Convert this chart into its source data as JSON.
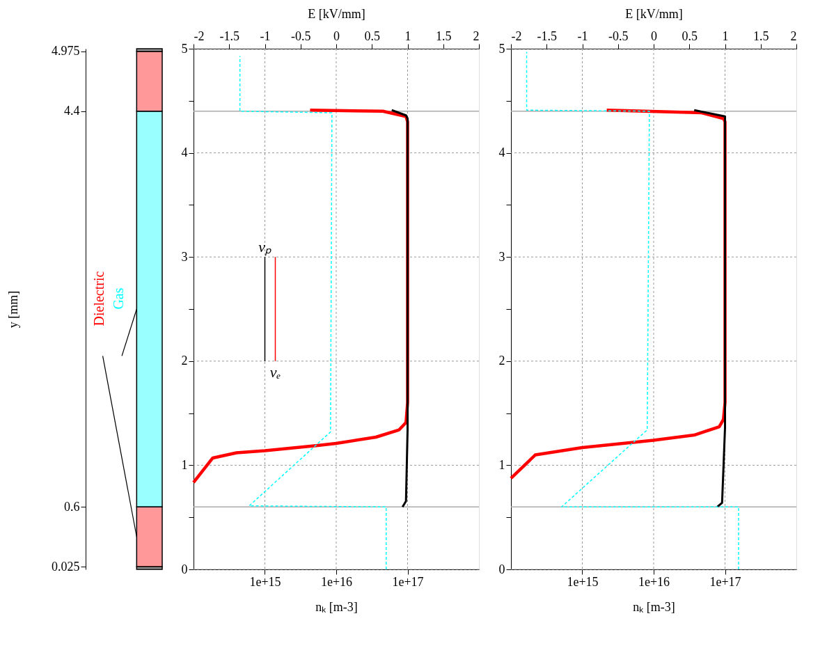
{
  "chart_data": [
    {
      "type": "bar",
      "stacked": true,
      "ylabel": "y [mm]",
      "ylim": [
        0,
        5
      ],
      "yticks": [
        0.025,
        0.6,
        4.4,
        4.975
      ],
      "categories": [
        null
      ],
      "series": [
        {
          "color": "#000000",
          "values": [
            0.025
          ]
        },
        {
          "name": "Dielectric",
          "color": "#ff0000",
          "values": [
            0.575
          ]
        },
        {
          "name": "Gas",
          "color": "#00ffff",
          "values": [
            3.8
          ]
        },
        {
          "color": "#ff0000",
          "values": [
            0.575
          ]
        },
        {
          "color": "#000000",
          "values": [
            0.025
          ]
        }
      ]
    },
    {
      "type": "line",
      "xlabel": "nₖ [m-3]",
      "x2label": "E [kV/mm]",
      "log": "x",
      "xlim": [
        100000000000000.0,
        1e+18
      ],
      "xticks": [
        {
          "value": 1000000000000000.0,
          "label": "1e+15"
        },
        {
          "value": 1e+16,
          "label": "1e+16"
        },
        {
          "value": 1e+17,
          "label": "1e+17"
        }
      ],
      "x2lim": [
        -2,
        2
      ],
      "x2ticks": [
        -2,
        -1.5,
        -1,
        -0.5,
        0,
        0.5,
        1,
        1.5,
        2
      ],
      "ylim": [
        0,
        5
      ],
      "yticks": [
        0,
        {
          "value": 0.5,
          "label": null
        },
        1,
        {
          "value": 1.5,
          "label": null
        },
        2,
        {
          "value": 2.5,
          "label": null
        },
        3,
        {
          "value": 3.5,
          "label": null
        },
        4,
        {
          "value": 4.5,
          "label": null
        },
        5
      ],
      "grid": true,
      "ref_lines": [
        {
          "axis": "y",
          "value": 0.6,
          "label": null,
          "color": "#aaaaaa"
        },
        {
          "axis": "y",
          "value": 4.4,
          "label": null,
          "color": "#aaaaaa"
        }
      ],
      "series": [
        {
          "color": "#ff0000",
          "x": [
            100000000000000.0,
            186000000000000.0,
            400000000000000.0,
            1000000000000000.0,
            5500000000000000.0,
            1e+16,
            3.6e+16,
            7.6e+16,
            9.5e+16,
            1e+17,
            1e+17,
            9.5e+16,
            4.5e+16,
            4300000000000000.0
          ],
          "values": [
            0.835,
            1.07,
            1.12,
            1.14,
            1.19,
            1.21,
            1.27,
            1.34,
            1.41,
            1.6,
            4.3,
            4.35,
            4.4,
            4.41
          ]
        },
        {
          "color": "#000000",
          "x": [
            8.5e+16,
            9.5e+16,
            1e+17,
            1e+17,
            9.5e+16,
            6e+16
          ],
          "values": [
            0.6,
            0.655,
            1.34,
            4.33,
            4.36,
            4.41
          ]
        },
        {
          "color": "#00ffff",
          "axis": "x2",
          "line_style": "dashed",
          "x": [
            0.7,
            0.7,
            -1.22,
            -0.08,
            -0.06,
            -1.35,
            -1.35
          ],
          "values": [
            0,
            0.6,
            0.61,
            1.32,
            4.385,
            4.4,
            4.93
          ]
        },
        {
          "color": "#000000",
          "x": [
            1000000000000000.0,
            1000000000000000.0
          ],
          "values": [
            3,
            2
          ]
        },
        {
          "color": "#ff0000",
          "x": [
            1400000000000000.0,
            1400000000000000.0
          ],
          "values": [
            2,
            3
          ]
        }
      ],
      "annotations": [
        {
          "text": "vₚ",
          "x": 1000000000000000.0,
          "y": 3
        },
        {
          "text": "vₑ",
          "x": 1400000000000000.0,
          "y": 2
        }
      ]
    },
    {
      "type": "line",
      "xlabel": "nₖ [m-3]",
      "x2label": "E [kV/mm]",
      "log": "x",
      "xlim": [
        100000000000000.0,
        1e+18
      ],
      "xticks": [
        {
          "value": 1000000000000000.0,
          "label": "1e+15"
        },
        {
          "value": 1e+16,
          "label": "1e+16"
        },
        {
          "value": 1e+17,
          "label": "1e+17"
        }
      ],
      "x2lim": [
        -2,
        2
      ],
      "x2ticks": [
        -2,
        -1.5,
        -1,
        -0.5,
        0,
        0.5,
        1,
        1.5,
        2
      ],
      "ylim": [
        0,
        5
      ],
      "yticks": [
        0,
        {
          "value": 0.5,
          "label": null
        },
        1,
        {
          "value": 1.5,
          "label": null
        },
        2,
        {
          "value": 2.5,
          "label": null
        },
        3,
        {
          "value": 3.5,
          "label": null
        },
        4,
        {
          "value": 4.5,
          "label": null
        },
        5
      ],
      "grid": true,
      "ref_lines": [
        {
          "axis": "y",
          "value": 0.6,
          "label": null,
          "color": "#aaaaaa"
        },
        {
          "axis": "y",
          "value": 4.4,
          "label": null,
          "color": "#aaaaaa"
        }
      ],
      "series": [
        {
          "color": "#ff0000",
          "x": [
            100000000000000.0,
            220000000000000.0,
            1000000000000000.0,
            1e+16,
            3.7e+16,
            8.3e+16,
            9.5e+16,
            1e+17,
            1e+17,
            9.5e+16,
            4.7e+16,
            2200000000000000.0
          ],
          "values": [
            0.875,
            1.1,
            1.17,
            1.24,
            1.29,
            1.37,
            1.44,
            1.6,
            4.3,
            4.33,
            4.385,
            4.41
          ]
        },
        {
          "color": "#000000",
          "x": [
            7.8e+16,
            9.1e+16,
            1e+17,
            1e+17,
            3.7e+16
          ],
          "values": [
            0.6,
            0.64,
            1.36,
            4.35,
            4.41
          ]
        },
        {
          "color": "#00ffff",
          "axis": "x2",
          "line_style": "dashed",
          "x": [
            1.19,
            1.19,
            -1.29,
            -0.09,
            -0.06,
            -1.78,
            -1.78
          ],
          "values": [
            0,
            0.6,
            0.6,
            1.34,
            4.4,
            4.41,
            4.97
          ]
        }
      ]
    }
  ]
}
